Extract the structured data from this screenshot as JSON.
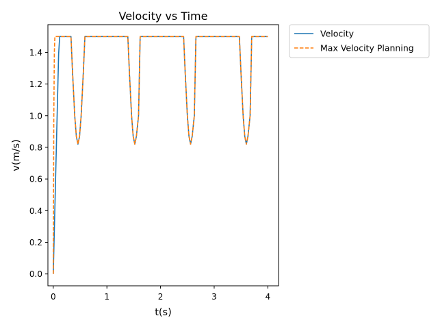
{
  "chart_data": {
    "type": "line",
    "title": "Velocity vs Time",
    "xlabel": "t(s)",
    "ylabel": "v(m/s)",
    "xlim": [
      -0.1,
      4.2
    ],
    "ylim": [
      -0.075,
      1.575
    ],
    "xticks": [
      0,
      1,
      2,
      3,
      4
    ],
    "yticks": [
      0.0,
      0.2,
      0.4,
      0.6,
      0.8,
      1.0,
      1.2,
      1.4
    ],
    "xtick_labels": [
      "0",
      "1",
      "2",
      "3",
      "4"
    ],
    "ytick_labels": [
      "0.0",
      "0.2",
      "0.4",
      "0.6",
      "0.8",
      "1.0",
      "1.2",
      "1.4"
    ],
    "grid": false,
    "legend_placement": "outside upper-right",
    "series": [
      {
        "name": "Velocity",
        "color": "#1f77b4",
        "dash": "solid",
        "x": [
          0,
          0.1,
          0.12,
          0.33,
          0.36,
          0.4,
          0.43,
          0.46,
          0.49,
          0.52,
          0.56,
          0.59,
          1.39,
          1.42,
          1.46,
          1.49,
          1.52,
          1.55,
          1.59,
          1.62,
          2.43,
          2.46,
          2.5,
          2.53,
          2.56,
          2.59,
          2.63,
          2.66,
          3.47,
          3.5,
          3.54,
          3.57,
          3.6,
          3.63,
          3.67,
          3.7,
          4.0
        ],
        "y": [
          0.0,
          1.39,
          1.5,
          1.5,
          1.27,
          1.0,
          0.87,
          0.82,
          0.87,
          1.0,
          1.27,
          1.5,
          1.5,
          1.27,
          1.0,
          0.87,
          0.82,
          0.87,
          1.0,
          1.5,
          1.5,
          1.27,
          1.0,
          0.87,
          0.82,
          0.87,
          1.0,
          1.5,
          1.5,
          1.27,
          1.0,
          0.87,
          0.82,
          0.87,
          1.0,
          1.5,
          1.5
        ]
      },
      {
        "name": "Max Velocity Planning",
        "color": "#ff7f0e",
        "dash": "dashed",
        "x": [
          0,
          0.005,
          0.01,
          0.02,
          0.03,
          0.33,
          0.36,
          0.4,
          0.43,
          0.46,
          0.49,
          0.52,
          0.56,
          0.59,
          1.39,
          1.42,
          1.46,
          1.49,
          1.52,
          1.55,
          1.59,
          1.62,
          2.43,
          2.46,
          2.5,
          2.53,
          2.56,
          2.59,
          2.63,
          2.66,
          3.47,
          3.5,
          3.54,
          3.57,
          3.6,
          3.63,
          3.67,
          3.7,
          4.0
        ],
        "y": [
          0.0,
          0.5,
          1.0,
          1.4,
          1.5,
          1.5,
          1.27,
          1.0,
          0.87,
          0.82,
          0.87,
          1.0,
          1.27,
          1.5,
          1.5,
          1.27,
          1.0,
          0.87,
          0.82,
          0.87,
          1.0,
          1.5,
          1.5,
          1.27,
          1.0,
          0.87,
          0.82,
          0.87,
          1.0,
          1.5,
          1.5,
          1.27,
          1.0,
          0.87,
          0.82,
          0.87,
          1.0,
          1.5,
          1.5
        ]
      }
    ]
  }
}
